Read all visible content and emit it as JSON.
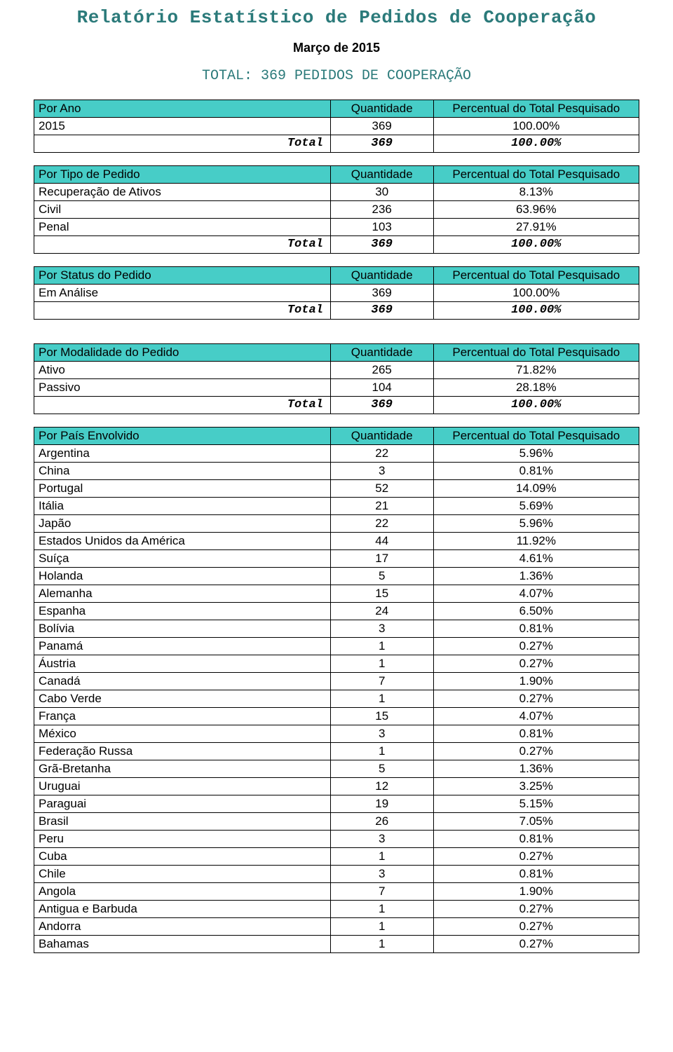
{
  "colors": {
    "header_bg": "#47cdc7",
    "border": "#000000",
    "title_color": "#2b7a7a",
    "text": "#000000",
    "page_bg": "#ffffff"
  },
  "titles": {
    "main": "Relatório Estatístico de Pedidos de Cooperação",
    "month": "Março de 2015",
    "total_line": "TOTAL: 369 PEDIDOS DE COOPERAÇÃO"
  },
  "labels": {
    "quantidade": "Quantidade",
    "percentual": "Percentual do Total Pesquisado",
    "total": "Total"
  },
  "tables": [
    {
      "header_label": "Por Ano",
      "rows": [
        {
          "label": "2015",
          "qty": "369",
          "pct": "100.00%"
        }
      ],
      "total": {
        "qty": "369",
        "pct": "100.00%"
      }
    },
    {
      "header_label": "Por Tipo de Pedido",
      "rows": [
        {
          "label": "Recuperação de Ativos",
          "qty": "30",
          "pct": "8.13%"
        },
        {
          "label": "Civil",
          "qty": "236",
          "pct": "63.96%"
        },
        {
          "label": "Penal",
          "qty": "103",
          "pct": "27.91%"
        }
      ],
      "total": {
        "qty": "369",
        "pct": "100.00%"
      }
    },
    {
      "header_label": "Por Status do Pedido",
      "rows": [
        {
          "label": "Em Análise",
          "qty": "369",
          "pct": "100.00%"
        }
      ],
      "total": {
        "qty": "369",
        "pct": "100.00%"
      }
    },
    {
      "header_label": "Por Modalidade do Pedido",
      "rows": [
        {
          "label": "Ativo",
          "qty": "265",
          "pct": "71.82%"
        },
        {
          "label": "Passivo",
          "qty": "104",
          "pct": "28.18%"
        }
      ],
      "total": {
        "qty": "369",
        "pct": "100.00%"
      },
      "extra_margin_top": true
    },
    {
      "header_label": "Por País Envolvido",
      "rows": [
        {
          "label": "Argentina",
          "qty": "22",
          "pct": "5.96%"
        },
        {
          "label": "China",
          "qty": "3",
          "pct": "0.81%"
        },
        {
          "label": "Portugal",
          "qty": "52",
          "pct": "14.09%"
        },
        {
          "label": "Itália",
          "qty": "21",
          "pct": "5.69%"
        },
        {
          "label": "Japão",
          "qty": "22",
          "pct": "5.96%"
        },
        {
          "label": "Estados Unidos da América",
          "qty": "44",
          "pct": "11.92%"
        },
        {
          "label": "Suíça",
          "qty": "17",
          "pct": "4.61%"
        },
        {
          "label": "Holanda",
          "qty": "5",
          "pct": "1.36%"
        },
        {
          "label": "Alemanha",
          "qty": "15",
          "pct": "4.07%"
        },
        {
          "label": "Espanha",
          "qty": "24",
          "pct": "6.50%"
        },
        {
          "label": "Bolívia",
          "qty": "3",
          "pct": "0.81%"
        },
        {
          "label": "Panamá",
          "qty": "1",
          "pct": "0.27%"
        },
        {
          "label": "Áustria",
          "qty": "1",
          "pct": "0.27%"
        },
        {
          "label": "Canadá",
          "qty": "7",
          "pct": "1.90%"
        },
        {
          "label": "Cabo Verde",
          "qty": "1",
          "pct": "0.27%"
        },
        {
          "label": "França",
          "qty": "15",
          "pct": "4.07%"
        },
        {
          "label": "México",
          "qty": "3",
          "pct": "0.81%"
        },
        {
          "label": "Federação Russa",
          "qty": "1",
          "pct": "0.27%"
        },
        {
          "label": "Grã-Bretanha",
          "qty": "5",
          "pct": "1.36%"
        },
        {
          "label": "Uruguai",
          "qty": "12",
          "pct": "3.25%"
        },
        {
          "label": "Paraguai",
          "qty": "19",
          "pct": "5.15%"
        },
        {
          "label": "Brasil",
          "qty": "26",
          "pct": "7.05%"
        },
        {
          "label": "Peru",
          "qty": "3",
          "pct": "0.81%"
        },
        {
          "label": "Cuba",
          "qty": "1",
          "pct": "0.27%"
        },
        {
          "label": "Chile",
          "qty": "3",
          "pct": "0.81%"
        },
        {
          "label": "Angola",
          "qty": "7",
          "pct": "1.90%"
        },
        {
          "label": "Antigua e Barbuda",
          "qty": "1",
          "pct": "0.27%"
        },
        {
          "label": "Andorra",
          "qty": "1",
          "pct": "0.27%"
        },
        {
          "label": "Bahamas",
          "qty": "1",
          "pct": "0.27%"
        }
      ]
    }
  ]
}
